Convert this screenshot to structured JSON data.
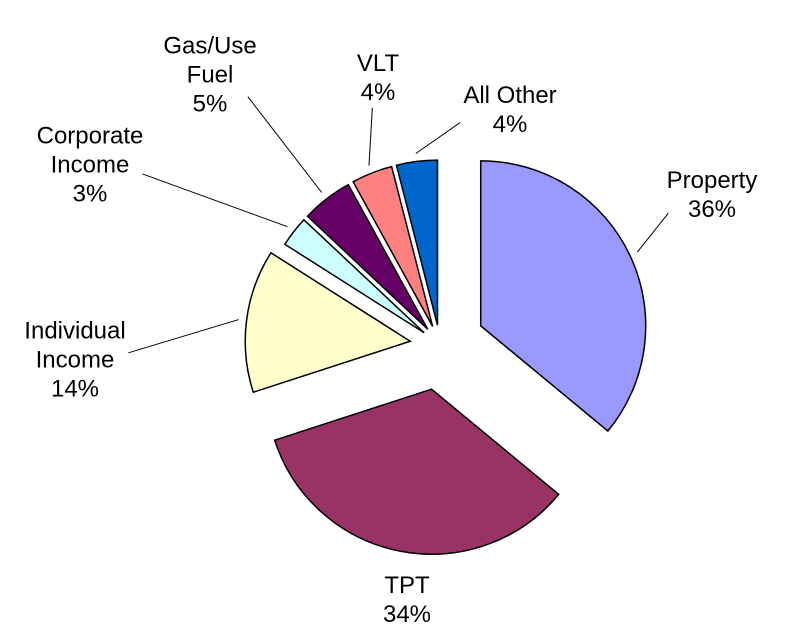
{
  "chart_data": {
    "type": "pie",
    "categories": [
      "Property",
      "TPT",
      "Individual Income",
      "Corporate Income",
      "Gas/Use Fuel",
      "VLT",
      "All Other"
    ],
    "values": [
      36,
      34,
      14,
      3,
      5,
      4,
      4
    ],
    "value_labels": [
      "36%",
      "34%",
      "14%",
      "3%",
      "5%",
      "4%",
      "4%"
    ],
    "colors": [
      "#9999ff",
      "#993366",
      "#ffffcc",
      "#ccffff",
      "#660066",
      "#ff8080",
      "#0066cc"
    ]
  }
}
